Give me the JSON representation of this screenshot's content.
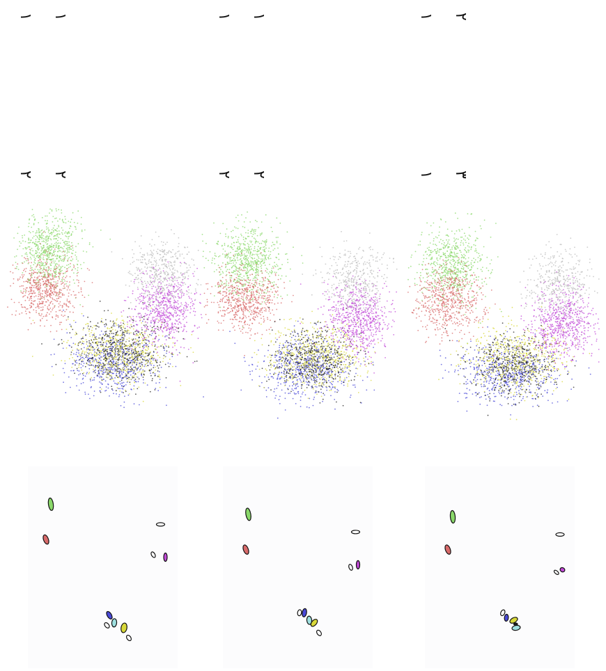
{
  "figure": {
    "columns": [
      {
        "id": "col-1",
        "rotated_labels": [
          "١",
          "١",
          "٢",
          "٢"
        ]
      },
      {
        "id": "col-2",
        "rotated_labels": [
          "١",
          "١",
          "٢",
          "٢"
        ]
      },
      {
        "id": "col-3",
        "rotated_labels": [
          "١",
          "٢",
          "١",
          "٣"
        ]
      }
    ]
  },
  "chart_data": [
    {
      "type": "scatter",
      "title": "",
      "xlabel": "",
      "ylabel": "",
      "grid": false,
      "panel": "column-1-scatter",
      "series": [
        {
          "color": "#8ad86a",
          "center": [
            -3.0,
            3.2
          ],
          "spread": [
            1.3,
            0.55
          ],
          "count": 700
        },
        {
          "color": "#d86a6a",
          "center": [
            -1.6,
            3.4
          ],
          "spread": [
            1.0,
            0.55
          ],
          "count": 600
        },
        {
          "color": "#4a4ad8",
          "center": [
            1.0,
            0.6
          ],
          "spread": [
            1.0,
            0.9
          ],
          "count": 600
        },
        {
          "color": "#d8d83a",
          "center": [
            0.6,
            0.4
          ],
          "spread": [
            1.0,
            0.9
          ],
          "count": 600
        },
        {
          "color": "#222222",
          "center": [
            0.6,
            0.3
          ],
          "spread": [
            1.1,
            0.9
          ],
          "count": 500
        },
        {
          "color": "#c24ad8",
          "center": [
            -0.9,
            -1.5
          ],
          "spread": [
            1.1,
            0.6
          ],
          "count": 650
        },
        {
          "color": "#bbbbbb",
          "center": [
            -2.2,
            -1.3
          ],
          "spread": [
            1.1,
            0.6
          ],
          "count": 450
        }
      ]
    },
    {
      "type": "scatter",
      "title": "",
      "xlabel": "",
      "ylabel": "",
      "grid": false,
      "panel": "column-2-scatter",
      "series": [
        {
          "color": "#8ad86a",
          "center": [
            -2.6,
            3.1
          ],
          "spread": [
            1.2,
            0.6
          ],
          "count": 700
        },
        {
          "color": "#d86a6a",
          "center": [
            -1.2,
            3.2
          ],
          "spread": [
            1.0,
            0.6
          ],
          "count": 600
        },
        {
          "color": "#4a4ad8",
          "center": [
            1.2,
            0.7
          ],
          "spread": [
            1.0,
            0.9
          ],
          "count": 600
        },
        {
          "color": "#d8d83a",
          "center": [
            0.8,
            0.3
          ],
          "spread": [
            1.0,
            0.9
          ],
          "count": 600
        },
        {
          "color": "#222222",
          "center": [
            0.9,
            0.4
          ],
          "spread": [
            1.0,
            0.8
          ],
          "count": 450
        },
        {
          "color": "#c24ad8",
          "center": [
            -0.6,
            -1.4
          ],
          "spread": [
            1.1,
            0.6
          ],
          "count": 650
        },
        {
          "color": "#bbbbbb",
          "center": [
            -1.9,
            -1.3
          ],
          "spread": [
            1.1,
            0.6
          ],
          "count": 400
        }
      ]
    },
    {
      "type": "scatter",
      "title": "",
      "xlabel": "",
      "ylabel": "",
      "grid": false,
      "panel": "column-3-scatter",
      "series": [
        {
          "color": "#8ad86a",
          "center": [
            -2.5,
            3.0
          ],
          "spread": [
            1.2,
            0.6
          ],
          "count": 650
        },
        {
          "color": "#d86a6a",
          "center": [
            -1.2,
            3.2
          ],
          "spread": [
            1.1,
            0.6
          ],
          "count": 600
        },
        {
          "color": "#4a4ad8",
          "center": [
            1.4,
            0.7
          ],
          "spread": [
            1.0,
            0.9
          ],
          "count": 600
        },
        {
          "color": "#d8d83a",
          "center": [
            0.9,
            0.3
          ],
          "spread": [
            1.1,
            0.9
          ],
          "count": 600
        },
        {
          "color": "#222222",
          "center": [
            1.1,
            0.5
          ],
          "spread": [
            1.0,
            0.8
          ],
          "count": 400
        },
        {
          "color": "#c24ad8",
          "center": [
            -0.4,
            -1.5
          ],
          "spread": [
            1.1,
            0.6
          ],
          "count": 650
        },
        {
          "color": "#bbbbbb",
          "center": [
            -1.8,
            -1.4
          ],
          "spread": [
            1.1,
            0.6
          ],
          "count": 400
        }
      ]
    },
    {
      "type": "scatter",
      "title": "",
      "xlabel": "",
      "ylabel": "",
      "grid": false,
      "panel": "column-1-ellipses",
      "components": [
        {
          "color": "#8ad86a",
          "center": [
            -3.0,
            3.2
          ],
          "rx": 0.45,
          "ry": 0.1,
          "angle": -8
        },
        {
          "color": "#d86a6a",
          "center": [
            -1.6,
            3.4
          ],
          "rx": 0.35,
          "ry": 0.1,
          "angle": -20
        },
        {
          "color": "#4a4ad8",
          "center": [
            1.4,
            0.8
          ],
          "rx": 0.3,
          "ry": 0.09,
          "angle": -30
        },
        {
          "color": "#d8d83a",
          "center": [
            1.9,
            0.2
          ],
          "rx": 0.35,
          "ry": 0.12,
          "angle": 10
        },
        {
          "color": "#9fe0e0",
          "center": [
            1.7,
            0.6
          ],
          "rx": 0.3,
          "ry": 0.1,
          "angle": 5
        },
        {
          "color": "#ffffff",
          "center": [
            1.8,
            0.9
          ],
          "rx": 0.22,
          "ry": 0.08,
          "angle": -40
        },
        {
          "color": "#ffffff",
          "center": [
            2.3,
            0.0
          ],
          "rx": 0.22,
          "ry": 0.08,
          "angle": -35
        },
        {
          "color": "#c24ad8",
          "center": [
            -0.9,
            -1.5
          ],
          "rx": 0.3,
          "ry": 0.07,
          "angle": 0
        },
        {
          "color": "#ffffff",
          "center": [
            -1.0,
            -1.0
          ],
          "rx": 0.22,
          "ry": 0.07,
          "angle": -30
        },
        {
          "color": "#ffffff",
          "center": [
            -2.2,
            -1.3
          ],
          "rx": 0.3,
          "ry": 0.07,
          "angle": 90
        }
      ]
    },
    {
      "type": "scatter",
      "title": "",
      "xlabel": "",
      "ylabel": "",
      "grid": false,
      "panel": "column-2-ellipses",
      "components": [
        {
          "color": "#8ad86a",
          "center": [
            -2.6,
            3.1
          ],
          "rx": 0.45,
          "ry": 0.1,
          "angle": -10
        },
        {
          "color": "#d86a6a",
          "center": [
            -1.2,
            3.2
          ],
          "rx": 0.35,
          "ry": 0.1,
          "angle": -20
        },
        {
          "color": "#4a4ad8",
          "center": [
            1.3,
            0.8
          ],
          "rx": 0.3,
          "ry": 0.09,
          "angle": 10
        },
        {
          "color": "#9fe0e0",
          "center": [
            1.6,
            0.6
          ],
          "rx": 0.3,
          "ry": 0.1,
          "angle": -5
        },
        {
          "color": "#d8d83a",
          "center": [
            1.7,
            0.4
          ],
          "rx": 0.3,
          "ry": 0.1,
          "angle": 40
        },
        {
          "color": "#ffffff",
          "center": [
            1.3,
            1.0
          ],
          "rx": 0.22,
          "ry": 0.08,
          "angle": 10
        },
        {
          "color": "#ffffff",
          "center": [
            2.1,
            0.2
          ],
          "rx": 0.22,
          "ry": 0.08,
          "angle": -35
        },
        {
          "color": "#c24ad8",
          "center": [
            -0.6,
            -1.4
          ],
          "rx": 0.3,
          "ry": 0.07,
          "angle": 0
        },
        {
          "color": "#ffffff",
          "center": [
            -0.5,
            -1.1
          ],
          "rx": 0.22,
          "ry": 0.07,
          "angle": -20
        },
        {
          "color": "#ffffff",
          "center": [
            -1.9,
            -1.3
          ],
          "rx": 0.3,
          "ry": 0.07,
          "angle": 90
        }
      ]
    },
    {
      "type": "scatter",
      "title": "",
      "xlabel": "",
      "ylabel": "",
      "grid": false,
      "panel": "column-3-ellipses",
      "components": [
        {
          "color": "#8ad86a",
          "center": [
            -2.5,
            3.0
          ],
          "rx": 0.45,
          "ry": 0.1,
          "angle": -5
        },
        {
          "color": "#d86a6a",
          "center": [
            -1.2,
            3.2
          ],
          "rx": 0.35,
          "ry": 0.1,
          "angle": -20
        },
        {
          "color": "#4a4ad8",
          "center": [
            1.5,
            0.8
          ],
          "rx": 0.25,
          "ry": 0.08,
          "angle": 5
        },
        {
          "color": "#ffffff",
          "center": [
            1.3,
            0.95
          ],
          "rx": 0.22,
          "ry": 0.08,
          "angle": 25
        },
        {
          "color": "#d8d83a",
          "center": [
            1.6,
            0.5
          ],
          "rx": 0.3,
          "ry": 0.1,
          "angle": 60
        },
        {
          "color": "#9fe0e0",
          "center": [
            1.9,
            0.4
          ],
          "rx": 0.3,
          "ry": 0.1,
          "angle": 80
        },
        {
          "color": "#222222",
          "center": [
            1.75,
            0.42
          ],
          "rx": 0.08,
          "ry": 0.08,
          "angle": 0
        },
        {
          "color": "#c24ad8",
          "center": [
            -0.4,
            -1.5
          ],
          "rx": 0.15,
          "ry": 0.1,
          "angle": 30
        },
        {
          "color": "#ffffff",
          "center": [
            -0.3,
            -1.25
          ],
          "rx": 0.2,
          "ry": 0.06,
          "angle": -50
        },
        {
          "color": "#ffffff",
          "center": [
            -1.8,
            -1.4
          ],
          "rx": 0.3,
          "ry": 0.07,
          "angle": 90
        }
      ]
    }
  ]
}
